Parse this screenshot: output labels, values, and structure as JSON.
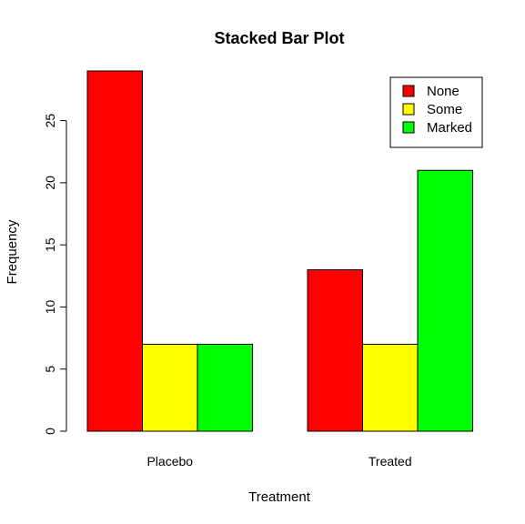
{
  "chart_data": {
    "type": "bar",
    "title": "Stacked Bar Plot",
    "xlabel": "Treatment",
    "ylabel": "Frequency",
    "categories": [
      "Placebo",
      "Treated"
    ],
    "series": [
      {
        "name": "None",
        "color": "#ff0000",
        "values": [
          29,
          13
        ]
      },
      {
        "name": "Some",
        "color": "#ffff00",
        "values": [
          7,
          7
        ]
      },
      {
        "name": "Marked",
        "color": "#00ff00",
        "values": [
          7,
          21
        ]
      }
    ],
    "ylim": [
      0,
      29
    ],
    "yticks": [
      0,
      5,
      10,
      15,
      20,
      25
    ],
    "grid": false,
    "legend_position": "top-right"
  }
}
